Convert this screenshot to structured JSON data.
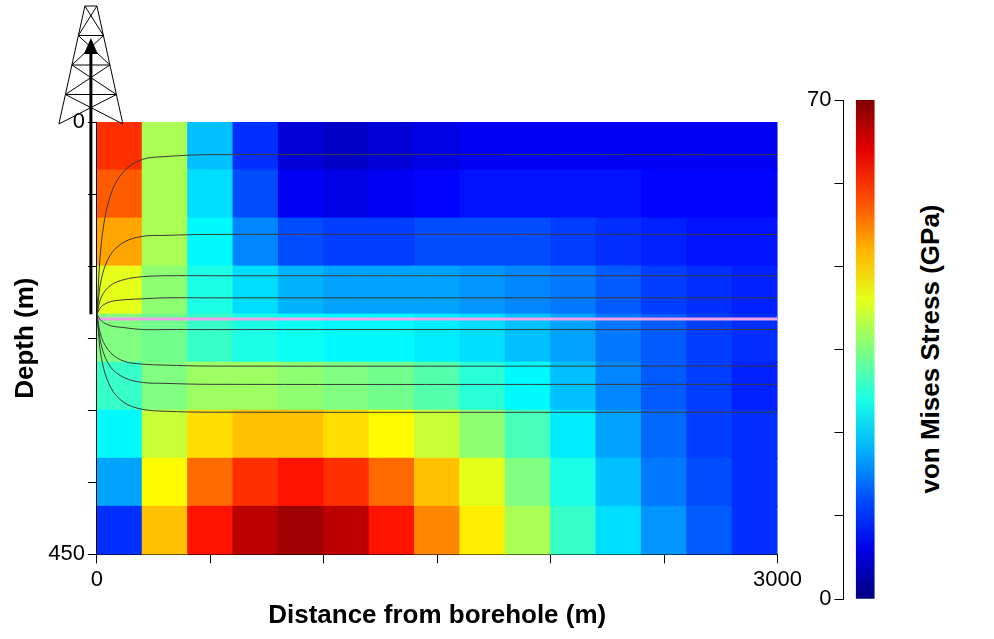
{
  "chart_data": {
    "type": "heatmap",
    "x_label": "Distance from borehole (m)",
    "y_label": "Depth (m)",
    "xlim": [
      0,
      3000
    ],
    "xticks": [
      0,
      {
        "value": 500,
        "label": null
      },
      {
        "value": 1000,
        "label": null
      },
      {
        "value": 1500,
        "label": null
      },
      {
        "value": 2000,
        "label": null
      },
      {
        "value": 2500,
        "label": null
      },
      3000
    ],
    "ylim": [
      0,
      450
    ],
    "yticks": [
      0,
      {
        "value": 75,
        "label": null
      },
      {
        "value": 150,
        "label": null
      },
      {
        "value": 225,
        "label": null
      },
      {
        "value": 300,
        "label": null
      },
      {
        "value": 375,
        "label": null
      },
      450
    ],
    "grid": false,
    "x_bins": [
      0,
      200,
      400,
      600,
      800,
      1000,
      1200,
      1400,
      1600,
      1800,
      2000,
      2200,
      2400,
      2600,
      2800,
      3000
    ],
    "y_bins": [
      0,
      50,
      100,
      150,
      200,
      250,
      300,
      350,
      400,
      450
    ],
    "cells": [
      [
        58,
        38,
        22,
        12,
        6,
        5,
        6,
        7,
        8,
        8,
        8,
        8,
        8,
        8,
        8
      ],
      [
        55,
        38,
        24,
        14,
        8,
        7,
        8,
        9,
        10,
        10,
        10,
        10,
        9,
        9,
        9
      ],
      [
        50,
        38,
        26,
        18,
        14,
        13,
        13,
        14,
        14,
        14,
        13,
        12,
        11,
        10,
        10
      ],
      [
        42,
        36,
        28,
        24,
        21,
        20,
        20,
        20,
        19,
        18,
        17,
        15,
        13,
        12,
        11
      ],
      [
        35,
        34,
        30,
        28,
        27,
        26,
        26,
        25,
        24,
        22,
        20,
        17,
        15,
        13,
        12
      ],
      [
        30,
        35,
        37,
        37,
        36,
        35,
        34,
        32,
        29,
        26,
        22,
        18,
        15,
        13,
        11
      ],
      [
        26,
        40,
        46,
        48,
        48,
        46,
        44,
        40,
        36,
        31,
        25,
        20,
        16,
        13,
        12
      ],
      [
        20,
        44,
        54,
        58,
        60,
        58,
        54,
        48,
        42,
        35,
        28,
        22,
        17,
        14,
        12
      ],
      [
        12,
        48,
        60,
        66,
        68,
        66,
        60,
        52,
        45,
        38,
        30,
        24,
        19,
        15,
        12
      ]
    ],
    "colorbar": {
      "label": "von Mises Stress (GPa)",
      "range": [
        0,
        70
      ],
      "ticks": [
        0,
        {
          "value": 11.67,
          "label": null
        },
        {
          "value": 23.33,
          "label": null
        },
        {
          "value": 35,
          "label": null
        },
        {
          "value": 46.67,
          "label": null
        },
        {
          "value": 58.33,
          "label": null
        },
        70
      ]
    },
    "x": [
      0,
      20,
      60,
      120,
      200,
      300,
      500,
      3000
    ],
    "series": [
      {
        "type": "line",
        "color": "#3a3a3a",
        "values": [
          200,
          125,
          76,
          51,
          39,
          36,
          34,
          34
        ]
      },
      {
        "type": "line",
        "color": "#3a3a3a",
        "values": [
          200,
          163,
          138,
          125,
          119,
          118,
          117,
          117
        ]
      },
      {
        "type": "line",
        "color": "#3a3a3a",
        "values": [
          200,
          182,
          170,
          164,
          161,
          160,
          160,
          160
        ]
      },
      {
        "type": "line",
        "color": "#3a3a3a",
        "values": [
          200,
          192,
          187,
          185,
          184,
          183,
          183,
          183
        ]
      },
      {
        "type": "line",
        "color": "#3a3a3a",
        "values": [
          200,
          207,
          212,
          214,
          216,
          216,
          216,
          216
        ]
      },
      {
        "type": "line",
        "color": "#3a3a3a",
        "values": [
          200,
          224,
          240,
          249,
          252,
          253,
          254,
          254
        ]
      },
      {
        "type": "line",
        "color": "#3a3a3a",
        "values": [
          200,
          233,
          255,
          266,
          271,
          272,
          273,
          273
        ]
      },
      {
        "type": "line",
        "color": "#3a3a3a",
        "values": [
          200,
          246,
          276,
          292,
          299,
          301,
          302,
          302
        ]
      },
      {
        "type": "line",
        "color": "#f0a0e8",
        "values": [
          205,
          205,
          205,
          205,
          205,
          205,
          205,
          205
        ]
      }
    ]
  }
}
